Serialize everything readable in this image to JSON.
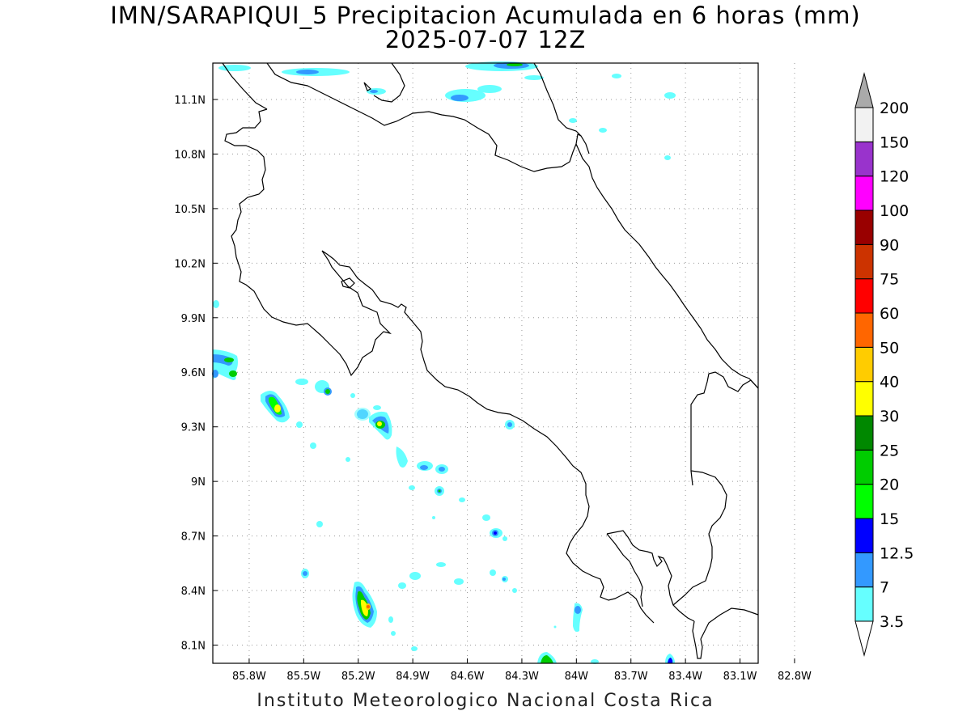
{
  "title": {
    "line1": "IMN/SARAPIQUI_5 Precipitacion Acumulada en 6 horas (mm)",
    "line2": "2025-07-07 12Z"
  },
  "credit": "Instituto Meteorologico Nacional Costa Rica",
  "map": {
    "lon_range": [
      -86.0,
      -83.0
    ],
    "lat_range": [
      8.0,
      11.3
    ],
    "lon_ticks": [
      {
        "value": -85.8,
        "label": "85.8W"
      },
      {
        "value": -85.5,
        "label": "85.5W"
      },
      {
        "value": -85.2,
        "label": "85.2W"
      },
      {
        "value": -84.9,
        "label": "84.9W"
      },
      {
        "value": -84.6,
        "label": "84.6W"
      },
      {
        "value": -84.3,
        "label": "84.3W"
      },
      {
        "value": -84.0,
        "label": "84W"
      },
      {
        "value": -83.7,
        "label": "83.7W"
      },
      {
        "value": -83.4,
        "label": "83.4W"
      },
      {
        "value": -83.1,
        "label": "83.1W"
      },
      {
        "value": -82.8,
        "label": "82.8W"
      }
    ],
    "lat_ticks": [
      {
        "value": 11.1,
        "label": "11.1N"
      },
      {
        "value": 10.8,
        "label": "10.8N"
      },
      {
        "value": 10.5,
        "label": "10.5N"
      },
      {
        "value": 10.2,
        "label": "10.2N"
      },
      {
        "value": 9.9,
        "label": "9.9N"
      },
      {
        "value": 9.6,
        "label": "9.6N"
      },
      {
        "value": 9.3,
        "label": "9.3N"
      },
      {
        "value": 9.0,
        "label": "9N"
      },
      {
        "value": 8.7,
        "label": "8.7N"
      },
      {
        "value": 8.4,
        "label": "8.4N"
      },
      {
        "value": 8.1,
        "label": "8.1N"
      }
    ],
    "grid": "dotted"
  },
  "colorbar": {
    "labels": [
      "3.5",
      "7",
      "12.5",
      "15",
      "20",
      "25",
      "30",
      "40",
      "50",
      "60",
      "75",
      "90",
      "100",
      "120",
      "150",
      "200"
    ],
    "colors": [
      "#66ffff",
      "#3399ff",
      "#0000ff",
      "#00ff00",
      "#00cc00",
      "#008800",
      "#ffff00",
      "#ffcc00",
      "#ff6600",
      "#ff0000",
      "#cc3300",
      "#990000",
      "#ff00ff",
      "#9933cc",
      "#f2f2f2"
    ],
    "below_color": "#ffffff",
    "above_color": "#aaaaaa"
  }
}
